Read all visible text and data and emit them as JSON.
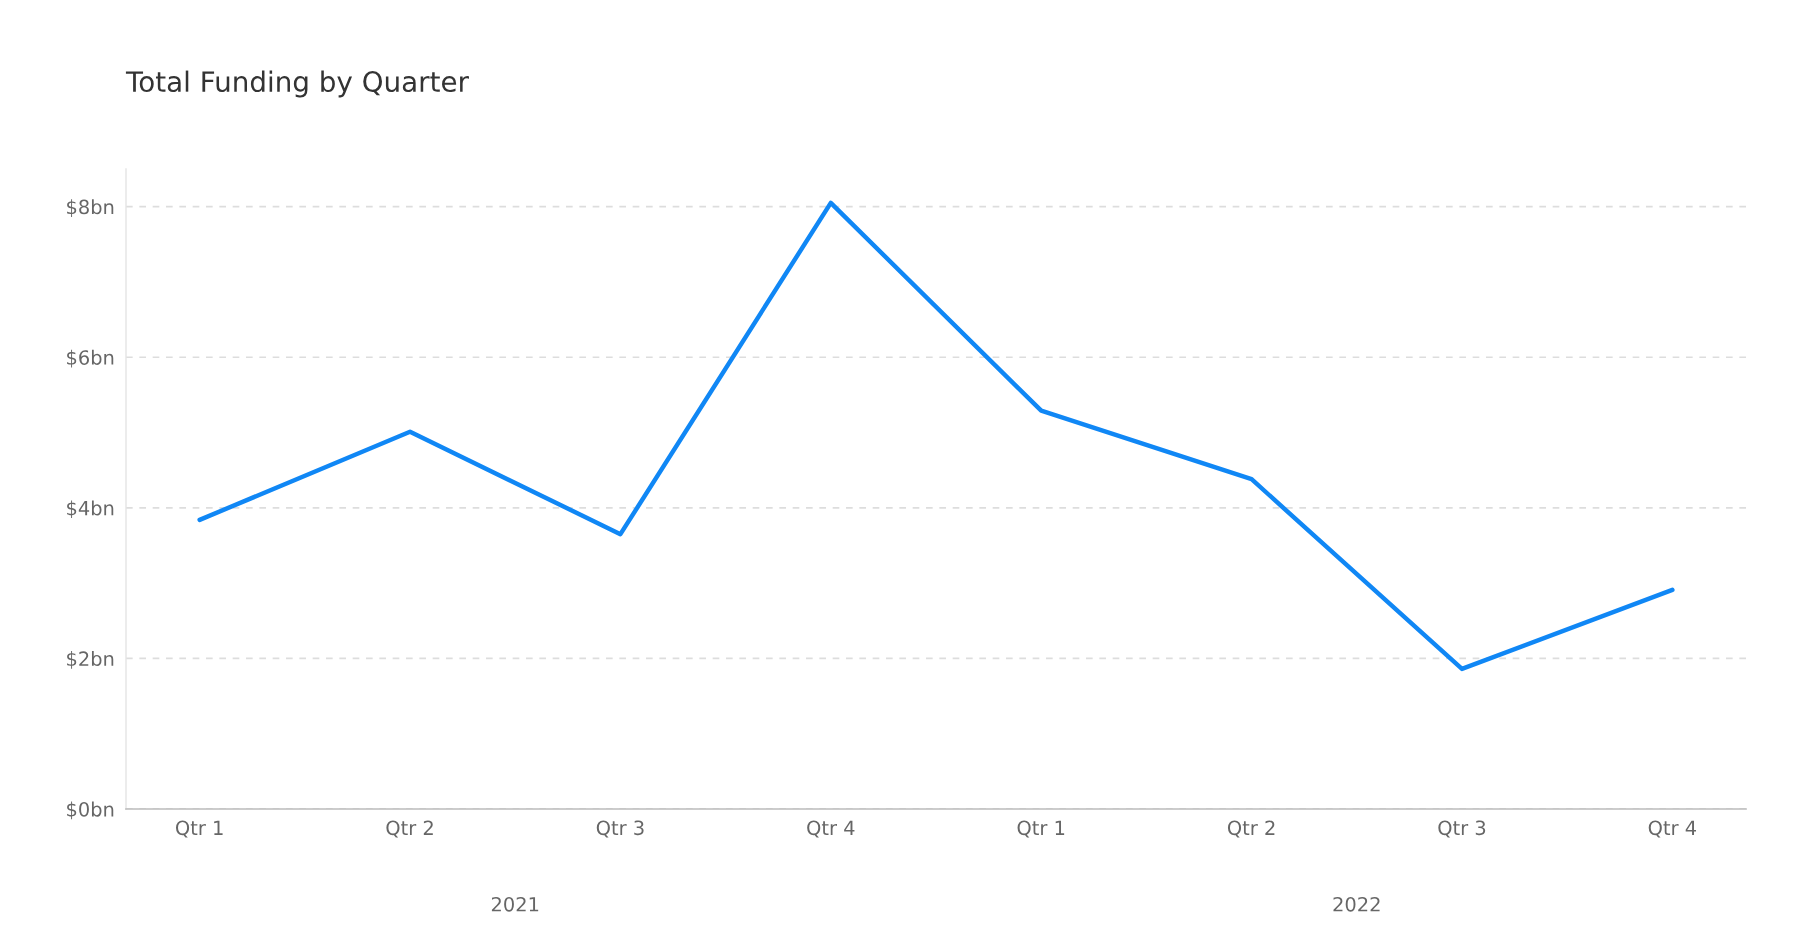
{
  "chart_data": {
    "type": "line",
    "title": "Total Funding by Quarter",
    "categories": [
      "Qtr 1",
      "Qtr 2",
      "Qtr 3",
      "Qtr 4",
      "Qtr 1",
      "Qtr 2",
      "Qtr 3",
      "Qtr 4"
    ],
    "series": [
      {
        "color": "#1087f5",
        "values": [
          3.84,
          5.01,
          3.65,
          8.05,
          5.29,
          4.38,
          1.86,
          2.91
        ]
      }
    ],
    "ylim": [
      0,
      8.5
    ],
    "yticks": [
      {
        "value": 0,
        "label": "$0bn"
      },
      {
        "value": 2,
        "label": "$2bn"
      },
      {
        "value": 4,
        "label": "$4bn"
      },
      {
        "value": 6,
        "label": "$6bn"
      },
      {
        "value": 8,
        "label": "$8bn"
      }
    ],
    "annotations": [
      "2021",
      "2022"
    ],
    "grid": "y",
    "marker": "none",
    "line_style": "solid"
  }
}
